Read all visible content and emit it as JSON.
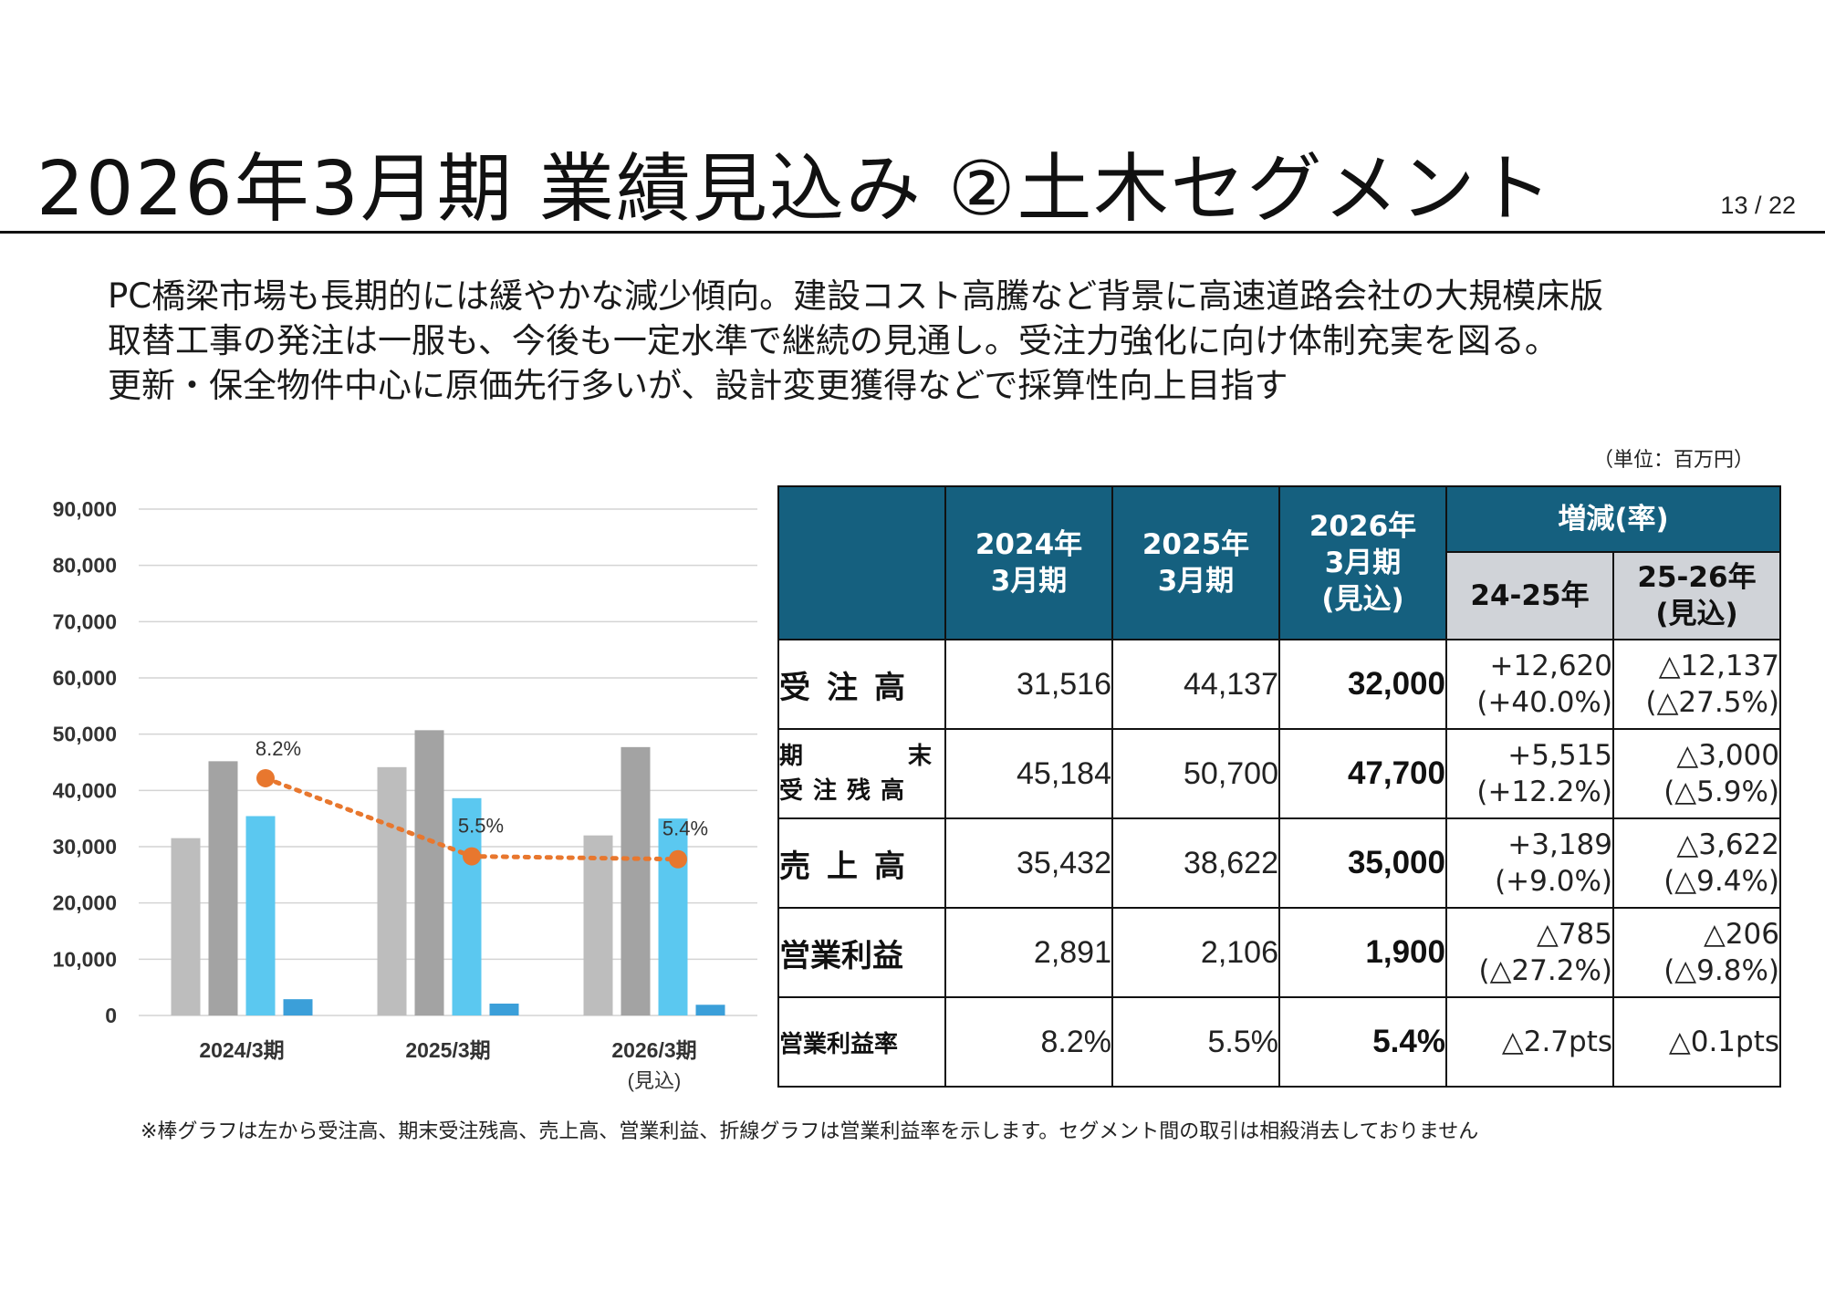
{
  "title": "2026年3月期 業績見込み ②土木セグメント",
  "page_number": "13 / 22",
  "description": [
    "PC橋梁市場も長期的には緩やかな減少傾向。建設コスト高騰など背景に高速道路会社の大規模床版",
    "取替工事の発注は一服も、今後も一定水準で継続の見通し。受注力強化に向け体制充実を図る。",
    "更新・保全物件中心に原価先行多いが、設計変更獲得などで採算性向上目指す"
  ],
  "unit_note": "（単位：百万円）",
  "chart_data": {
    "type": "bar",
    "categories": [
      "2024/3期",
      "2025/3期",
      "2026/3期"
    ],
    "category_sublabels": [
      "",
      "",
      "(見込)"
    ],
    "series": [
      {
        "name": "受注高",
        "values": [
          31516,
          44137,
          32000
        ],
        "color": "#bdbdbd"
      },
      {
        "name": "期末受注残高",
        "values": [
          45184,
          50700,
          47700
        ],
        "color": "#a3a3a3"
      },
      {
        "name": "売上高",
        "values": [
          35432,
          38622,
          35000
        ],
        "color": "#5bc8f0"
      },
      {
        "name": "営業利益",
        "values": [
          2891,
          2106,
          1900
        ],
        "color": "#3b9fd9"
      }
    ],
    "line_series": {
      "name": "営業利益率",
      "values": [
        8.2,
        5.5,
        5.4
      ],
      "labels": [
        "8.2%",
        "5.5%",
        "5.4%"
      ],
      "color": "#e8772e"
    },
    "ylim": [
      0,
      90000
    ],
    "yticks": [
      "90,000",
      "80,000",
      "70,000",
      "60,000",
      "50,000",
      "40,000",
      "30,000",
      "20,000",
      "10,000",
      "0"
    ],
    "grid": true
  },
  "table": {
    "headers": {
      "y2024": [
        "2024年",
        "3月期"
      ],
      "y2025": [
        "2025年",
        "3月期"
      ],
      "y2026": [
        "2026年",
        "3月期",
        "(見込)"
      ],
      "change": "増減(率)",
      "c1": "24-25年",
      "c2": [
        "25-26年",
        "(見込)"
      ]
    },
    "rows": [
      {
        "label": "受注高",
        "v2024": "31,516",
        "v2025": "44,137",
        "v2026": "32,000",
        "c1": [
          "+12,620",
          "(+40.0%)"
        ],
        "c2": [
          "△12,137",
          "(△27.5%)"
        ]
      },
      {
        "label_parts": [
          "期",
          "末",
          "受注残高"
        ],
        "v2024": "45,184",
        "v2025": "50,700",
        "v2026": "47,700",
        "c1": [
          "+5,515",
          "(+12.2%)"
        ],
        "c2": [
          "△3,000",
          "(△5.9%)"
        ]
      },
      {
        "label": "売上高",
        "v2024": "35,432",
        "v2025": "38,622",
        "v2026": "35,000",
        "c1": [
          "+3,189",
          "(+9.0%)"
        ],
        "c2": [
          "△3,622",
          "(△9.4%)"
        ]
      },
      {
        "label": "営業利益",
        "v2024": "2,891",
        "v2025": "2,106",
        "v2026": "1,900",
        "c1": [
          "△785",
          "(△27.2%)"
        ],
        "c2": [
          "△206",
          "(△9.8%)"
        ]
      },
      {
        "label": "営業利益率",
        "v2024": "8.2%",
        "v2025": "5.5%",
        "v2026": "5.4%",
        "c1": [
          "△2.7pts"
        ],
        "c2": [
          "△0.1pts"
        ]
      }
    ]
  },
  "footnote": "※棒グラフは左から受注高、期末受注残高、売上高、営業利益、折線グラフは営業利益率を示します。セグメント間の取引は相殺消去しておりません"
}
